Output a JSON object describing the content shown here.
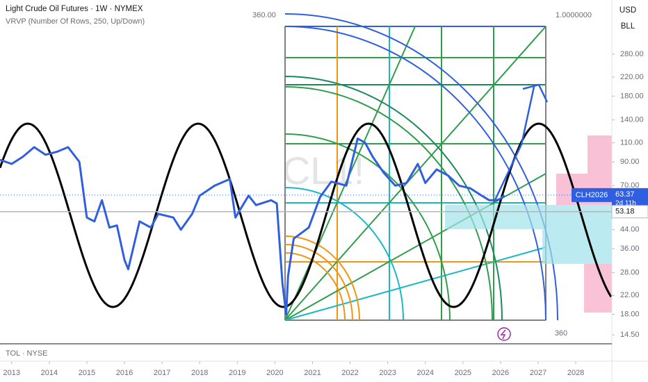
{
  "chart_data": {
    "type": "line",
    "title": "Light Crude Oil Futures · 1W · NYMEX",
    "subtitle": "VRVP (Number Of Rows, 250, Up/Down)",
    "watermark": "CL1!",
    "currency": "USD",
    "unit": "BLL",
    "lower_pane": "TOL · NYSE",
    "annotations": [
      "360.00",
      "1.0000000",
      "360"
    ],
    "symbol": "CLH2026",
    "last_price": 63.37,
    "countdown": "2d 11h",
    "ref_price": 53.18,
    "color": "#2f5fe0",
    "log_scale": true,
    "x": [
      2012.69,
      2013.0,
      2013.3,
      2013.6,
      2013.9,
      2014.2,
      2014.5,
      2014.8,
      2015.0,
      2015.2,
      2015.4,
      2015.6,
      2015.8,
      2016.0,
      2016.1,
      2016.4,
      2016.7,
      2016.9,
      2017.3,
      2017.5,
      2017.8,
      2018.0,
      2018.4,
      2018.8,
      2018.95,
      2019.3,
      2019.5,
      2019.9,
      2020.05,
      2020.2,
      2020.3,
      2020.35,
      2020.5,
      2020.9,
      2021.2,
      2021.5,
      2021.9,
      2022.2,
      2022.4,
      2022.6,
      2022.9,
      2023.2,
      2023.5,
      2023.8,
      2024.0,
      2024.3,
      2024.6,
      2024.9,
      2025.2,
      2025.5,
      2025.7,
      2025.9,
      2026.0,
      2026.1
    ],
    "values": [
      92,
      88,
      95,
      105,
      97,
      100,
      105,
      90,
      50,
      48,
      60,
      45,
      46,
      32,
      29,
      48,
      45,
      52,
      50,
      44,
      52,
      63,
      70,
      75,
      50,
      63,
      57,
      60,
      58,
      25,
      18,
      27,
      40,
      45,
      62,
      73,
      70,
      115,
      110,
      95,
      80,
      70,
      72,
      88,
      72,
      83,
      78,
      70,
      68,
      63,
      60,
      60,
      61,
      63.37
    ],
    "xlim": [
      2012.69,
      2028.96
    ],
    "xticks": [
      2013,
      2014,
      2015,
      2016,
      2017,
      2018,
      2019,
      2020,
      2021,
      2022,
      2023,
      2024,
      2025,
      2026,
      2027,
      2028
    ],
    "ylim": [
      13.2,
      496
    ],
    "yticks": [
      {
        "value": 280,
        "label": "280.00"
      },
      {
        "value": 220,
        "label": "220.00"
      },
      {
        "value": 180,
        "label": "180.00"
      },
      {
        "value": 140,
        "label": "140.00"
      },
      {
        "value": 110,
        "label": "110.00"
      },
      {
        "value": 90,
        "label": "90.00"
      },
      {
        "value": 70,
        "label": "70.00"
      },
      {
        "value": 44,
        "label": "44.00"
      },
      {
        "value": 36,
        "label": "36.00"
      },
      {
        "value": 28,
        "label": "28.00"
      },
      {
        "value": 22,
        "label": "22.00"
      },
      {
        "value": 18,
        "label": "18.00"
      },
      {
        "value": 14.5,
        "label": "14.50"
      }
    ]
  }
}
